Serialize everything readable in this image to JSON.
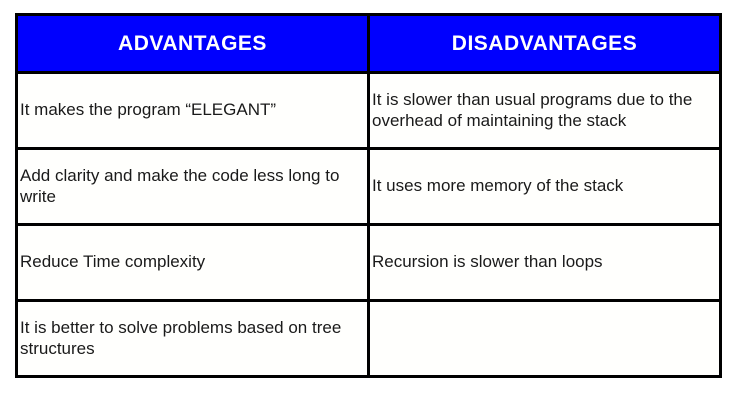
{
  "table": {
    "columns": [
      {
        "label": "ADVANTAGES"
      },
      {
        "label": "DISADVANTAGES"
      }
    ],
    "rows": [
      {
        "advantage": "It makes the program “ELEGANT”",
        "disadvantage": "It is slower than usual programs due to the overhead of maintaining the stack"
      },
      {
        "advantage": "Add clarity and make the code less long to write",
        "disadvantage": "It uses more memory of the stack"
      },
      {
        "advantage": "Reduce Time complexity",
        "disadvantage": "Recursion is slower than loops"
      },
      {
        "advantage": "It is better to solve problems based on tree structures",
        "disadvantage": ""
      }
    ],
    "colors": {
      "header_background": "#0000fe",
      "header_text": "#ffffff",
      "border": "#000000",
      "body_background": "#fffffd",
      "body_text": "#1a1a1a",
      "page_background": "#ffffff"
    }
  }
}
